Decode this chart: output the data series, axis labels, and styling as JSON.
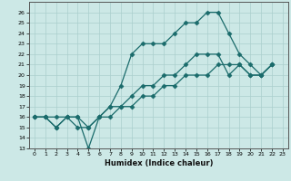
{
  "xlabel": "Humidex (Indice chaleur)",
  "background_color": "#cce8e6",
  "line_color": "#1a6b6b",
  "grid_color": "#aacfcd",
  "xlim": [
    -0.5,
    23.5
  ],
  "ylim": [
    13,
    27
  ],
  "yticks": [
    13,
    14,
    15,
    16,
    17,
    18,
    19,
    20,
    21,
    22,
    23,
    24,
    25,
    26
  ],
  "xticks": [
    0,
    1,
    2,
    3,
    4,
    5,
    6,
    7,
    8,
    9,
    10,
    11,
    12,
    13,
    14,
    15,
    16,
    17,
    18,
    19,
    20,
    21,
    22,
    23
  ],
  "lines": [
    {
      "x": [
        0,
        1,
        2,
        3,
        4,
        5,
        6,
        7,
        8,
        9,
        10,
        11,
        12,
        13,
        14,
        15,
        16,
        17,
        18,
        19,
        20,
        21,
        22
      ],
      "y": [
        16,
        16,
        16,
        16,
        16,
        13,
        16,
        17,
        19,
        22,
        23,
        23,
        23,
        24,
        25,
        25,
        26,
        26,
        24,
        22,
        21,
        20,
        21
      ]
    },
    {
      "x": [
        0,
        1,
        2,
        3,
        4,
        5,
        6,
        7,
        8,
        9,
        10,
        11,
        12,
        13,
        14,
        15,
        16,
        17,
        18,
        19,
        20,
        21,
        22
      ],
      "y": [
        16,
        16,
        15,
        16,
        16,
        15,
        16,
        17,
        17,
        18,
        19,
        19,
        20,
        20,
        21,
        22,
        22,
        22,
        20,
        21,
        20,
        20,
        21
      ]
    },
    {
      "x": [
        0,
        1,
        2,
        3,
        4,
        5,
        6,
        7,
        8,
        9,
        10,
        11,
        12,
        13,
        14,
        15,
        16,
        17,
        18,
        19,
        20,
        21,
        22
      ],
      "y": [
        16,
        16,
        15,
        16,
        15,
        15,
        16,
        16,
        17,
        17,
        18,
        18,
        19,
        19,
        20,
        20,
        20,
        21,
        21,
        21,
        20,
        20,
        21
      ]
    }
  ]
}
